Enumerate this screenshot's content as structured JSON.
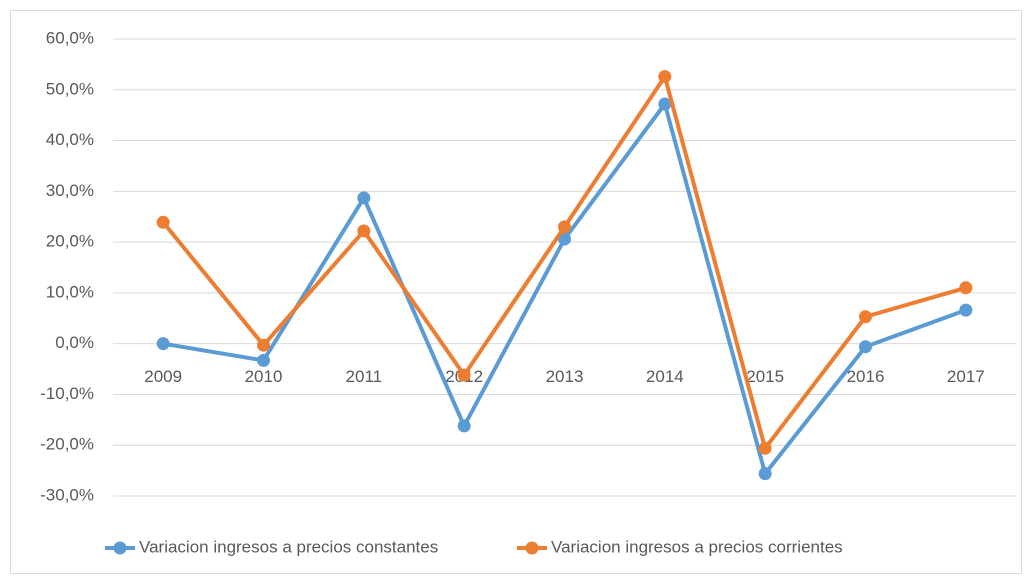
{
  "chart_data": {
    "type": "line",
    "categories": [
      "2009",
      "2010",
      "2011",
      "2012",
      "2013",
      "2014",
      "2015",
      "2016",
      "2017"
    ],
    "series": [
      {
        "name": "Variacion ingresos a precios constantes",
        "color": "#5b9bd5",
        "values": [
          0.0,
          -3.3,
          28.7,
          -16.2,
          20.6,
          47.2,
          -25.6,
          -0.6,
          6.6
        ]
      },
      {
        "name": "Variacion ingresos a precios corrientes",
        "color": "#ed7d31",
        "values": [
          23.9,
          -0.3,
          22.2,
          -6.2,
          23.0,
          52.6,
          -20.6,
          5.3,
          11.0
        ]
      }
    ],
    "ylim": [
      -30,
      60
    ],
    "yticks": [
      {
        "value": -30,
        "label": "-30,0%"
      },
      {
        "value": -20,
        "label": "-20,0%"
      },
      {
        "value": -10,
        "label": "-10,0%"
      },
      {
        "value": 0,
        "label": "0,0%"
      },
      {
        "value": 10,
        "label": "10,0%"
      },
      {
        "value": 20,
        "label": "20,0%"
      },
      {
        "value": 30,
        "label": "30,0%"
      },
      {
        "value": 40,
        "label": "40,0%"
      },
      {
        "value": 50,
        "label": "50,0%"
      },
      {
        "value": 60,
        "label": "60,0%"
      }
    ],
    "grid": true,
    "legend": "bottom"
  }
}
